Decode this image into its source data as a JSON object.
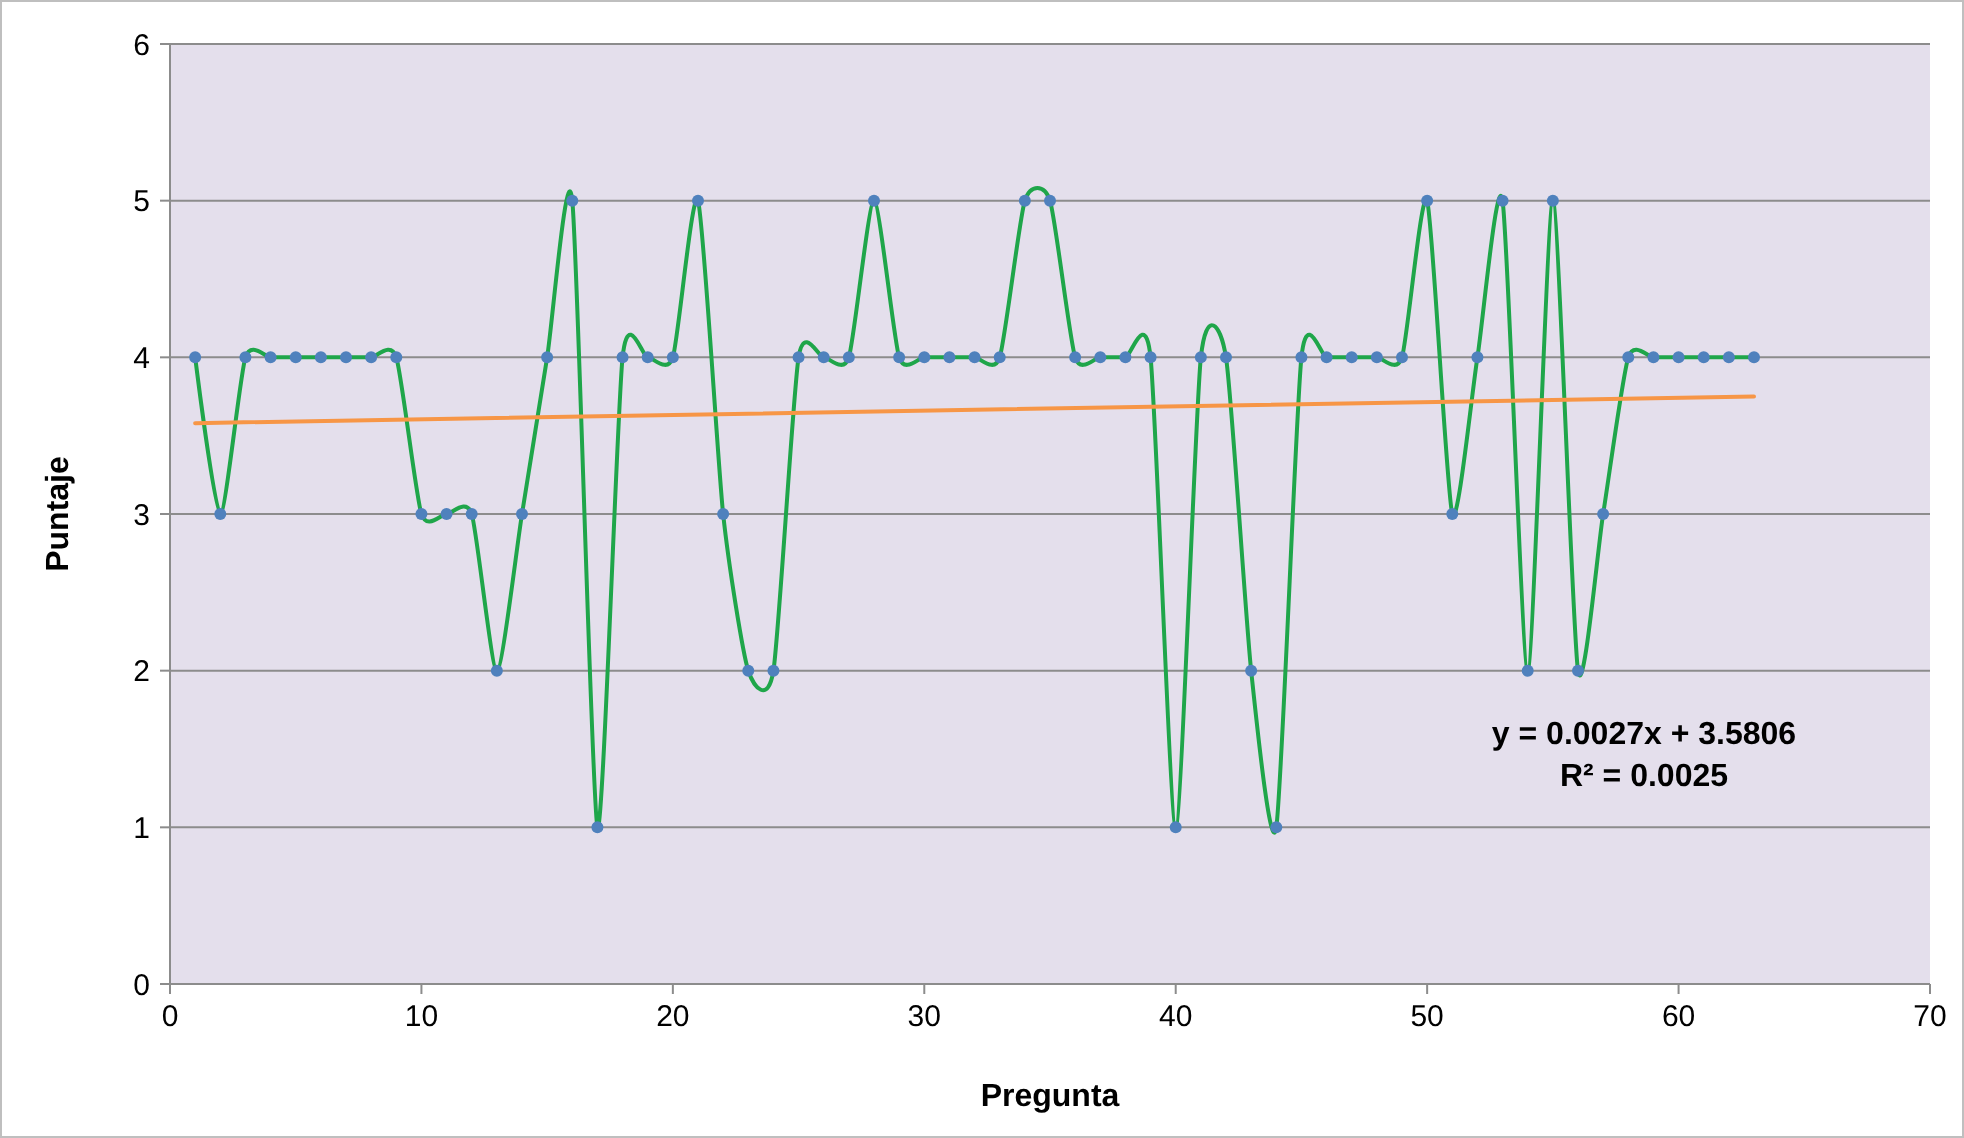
{
  "chart_data": {
    "type": "line",
    "xlabel": "Pregunta",
    "ylabel": "Puntaje",
    "xlim": [
      0,
      70
    ],
    "xticks": [
      0,
      10,
      20,
      30,
      40,
      50,
      60,
      70
    ],
    "ylim": [
      0,
      6
    ],
    "yticks": [
      0,
      1,
      2,
      3,
      4,
      5,
      6
    ],
    "grid": "y",
    "marker": "circle",
    "x": [
      1,
      2,
      3,
      4,
      5,
      6,
      7,
      8,
      9,
      10,
      11,
      12,
      13,
      14,
      15,
      16,
      17,
      18,
      19,
      20,
      21,
      22,
      23,
      24,
      25,
      26,
      27,
      28,
      29,
      30,
      31,
      32,
      33,
      34,
      35,
      36,
      37,
      38,
      39,
      40,
      41,
      42,
      43,
      44,
      45,
      46,
      47,
      48,
      49,
      50,
      51,
      52,
      53,
      54,
      55,
      56,
      57,
      58,
      59,
      60,
      61,
      62,
      63
    ],
    "series": [
      {
        "color": "#1fa64a",
        "marker": "none",
        "values": [
          4,
          3,
          4,
          4,
          4,
          4,
          4,
          4,
          4,
          3,
          3,
          3,
          2,
          3,
          4,
          5,
          1,
          4,
          4,
          4,
          5,
          3,
          2,
          2,
          4,
          4,
          4,
          5,
          4,
          4,
          4,
          4,
          4,
          5,
          5,
          4,
          4,
          4,
          4,
          1,
          4,
          4,
          2,
          1,
          4,
          4,
          4,
          4,
          4,
          5,
          3,
          4,
          5,
          2,
          5,
          2,
          3,
          4,
          4,
          4,
          4,
          4,
          4
        ]
      },
      {
        "type": "scatter",
        "color": "#4f81bd",
        "values": [
          4,
          3,
          4,
          4,
          4,
          4,
          4,
          4,
          4,
          3,
          3,
          3,
          2,
          3,
          4,
          5,
          1,
          4,
          4,
          4,
          5,
          3,
          2,
          2,
          4,
          4,
          4,
          5,
          4,
          4,
          4,
          4,
          4,
          5,
          5,
          4,
          4,
          4,
          4,
          1,
          4,
          4,
          2,
          1,
          4,
          4,
          4,
          4,
          4,
          5,
          3,
          4,
          5,
          2,
          5,
          2,
          3,
          4,
          4,
          4,
          4,
          4,
          4
        ]
      },
      {
        "type": "line",
        "color": "#f79646",
        "marker": "none",
        "x": [
          1,
          63
        ],
        "values": [
          3.58,
          3.75
        ]
      }
    ],
    "annotations": [
      "y = 0.0027x + 3.5806",
      "R² = 0.0025"
    ]
  }
}
